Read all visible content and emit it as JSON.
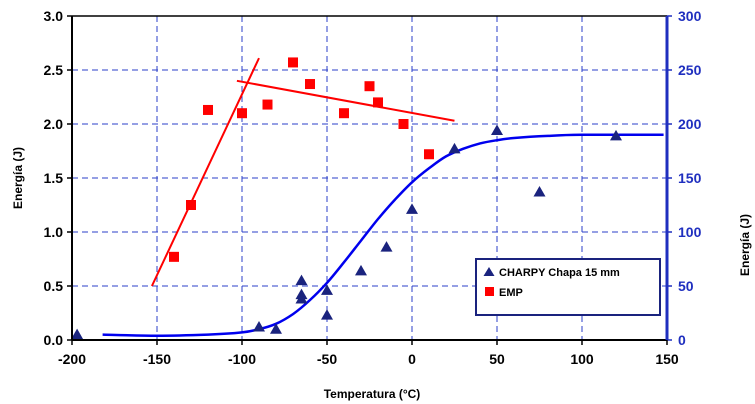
{
  "chart_data": {
    "type": "scatter",
    "xlabel": "Temperatura (°C)",
    "ylabel_left": "Energía (J)",
    "ylabel_right": "Energía (J)",
    "xlim": [
      -200,
      150
    ],
    "ylim_left": [
      0.0,
      3.0
    ],
    "ylim_right": [
      0,
      300
    ],
    "x_ticks": [
      "-200",
      "-150",
      "-100",
      "-50",
      "0",
      "50",
      "100",
      "150"
    ],
    "y_ticks_left": [
      "0.0",
      "0.5",
      "1.0",
      "1.5",
      "2.0",
      "2.5",
      "3.0"
    ],
    "y_ticks_right": [
      "0",
      "50",
      "100",
      "150",
      "200",
      "250",
      "300"
    ],
    "grid": true,
    "legend_position": "center-right",
    "colors": {
      "charpy": "#1a237e",
      "emp": "#ff0000",
      "curve": "#0000ee",
      "right_axis": "#1f2fbf",
      "grid": "#2b3fc9"
    },
    "series": [
      {
        "name": "CHARPY Chapa 15 mm",
        "axis": "right",
        "marker": "triangle",
        "points": [
          [
            -197,
            5
          ],
          [
            -90,
            12
          ],
          [
            -80,
            10
          ],
          [
            -65,
            55
          ],
          [
            -65,
            42
          ],
          [
            -65,
            38
          ],
          [
            -50,
            46
          ],
          [
            -50,
            23
          ],
          [
            -30,
            64
          ],
          [
            -15,
            86
          ],
          [
            0,
            121
          ],
          [
            25,
            177
          ],
          [
            50,
            194
          ],
          [
            75,
            137
          ],
          [
            120,
            189
          ]
        ]
      },
      {
        "name": "EMP",
        "axis": "left",
        "marker": "square",
        "points": [
          [
            -140,
            0.77
          ],
          [
            -130,
            1.25
          ],
          [
            -120,
            2.13
          ],
          [
            -100,
            2.1
          ],
          [
            -85,
            2.18
          ],
          [
            -70,
            2.57
          ],
          [
            -60,
            2.37
          ],
          [
            -40,
            2.1
          ],
          [
            -25,
            2.35
          ],
          [
            -20,
            2.2
          ],
          [
            -5,
            2.0
          ],
          [
            10,
            1.72
          ]
        ]
      }
    ],
    "trend_lines": [
      {
        "axis": "left",
        "color": "red",
        "points": [
          [
            -153,
            0.5
          ],
          [
            -90,
            2.61
          ]
        ]
      },
      {
        "axis": "left",
        "color": "red",
        "points": [
          [
            -103,
            2.4
          ],
          [
            25,
            2.03
          ]
        ]
      }
    ],
    "fit_curve": {
      "axis": "right",
      "points": [
        [
          -182,
          5
        ],
        [
          -150,
          4
        ],
        [
          -120,
          5
        ],
        [
          -100,
          7
        ],
        [
          -90,
          10
        ],
        [
          -80,
          15
        ],
        [
          -70,
          24
        ],
        [
          -60,
          37
        ],
        [
          -50,
          53
        ],
        [
          -40,
          72
        ],
        [
          -30,
          92
        ],
        [
          -20,
          112
        ],
        [
          -10,
          130
        ],
        [
          0,
          146
        ],
        [
          10,
          159
        ],
        [
          20,
          170
        ],
        [
          30,
          177
        ],
        [
          40,
          182
        ],
        [
          50,
          185
        ],
        [
          60,
          187
        ],
        [
          80,
          189
        ],
        [
          100,
          190
        ],
        [
          148,
          190
        ]
      ]
    }
  }
}
